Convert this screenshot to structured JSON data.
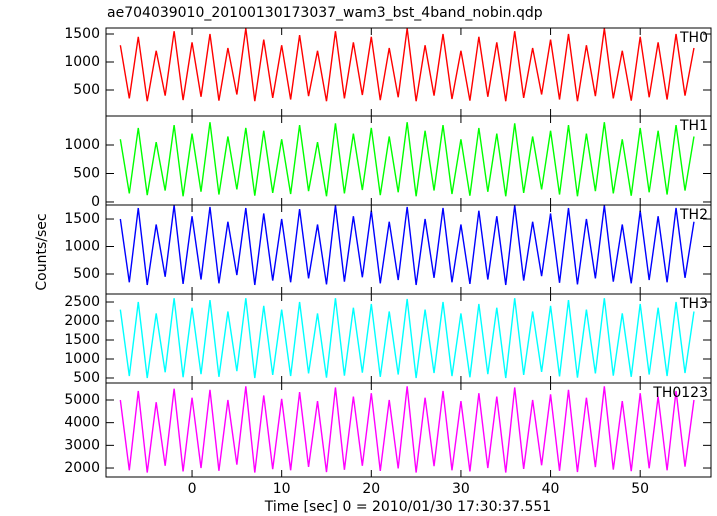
{
  "chart_data": {
    "type": "line",
    "title": "ae704039010_20100130173037_wam3_bst_4band_nobin.qdp",
    "xlabel": "Time [sec] 0 = 2010/01/30 17:30:37.551",
    "ylabel": "Counts/sec",
    "xlim": [
      -9.6,
      57.9
    ],
    "xticks": [
      0,
      10,
      20,
      30,
      40,
      50
    ],
    "x": [
      -8,
      -7,
      -6,
      -5,
      -4,
      -3,
      -2,
      -1,
      0,
      1,
      2,
      3,
      4,
      5,
      6,
      7,
      8,
      9,
      10,
      11,
      12,
      13,
      14,
      15,
      16,
      17,
      18,
      19,
      20,
      21,
      22,
      23,
      24,
      25,
      26,
      27,
      28,
      29,
      30,
      31,
      32,
      33,
      34,
      35,
      36,
      37,
      38,
      39,
      40,
      41,
      42,
      43,
      44,
      45,
      46,
      47,
      48,
      49,
      50,
      51,
      52,
      53,
      54,
      55,
      56
    ],
    "series": [
      {
        "name": "TH0",
        "color": "#ff0000",
        "ylim": [
          36,
          1607
        ],
        "yticks": [
          500,
          1000,
          1500
        ],
        "values": [
          1300,
          350,
          1450,
          300,
          1200,
          400,
          1550,
          320,
          1350,
          380,
          1500,
          310,
          1250,
          420,
          1600,
          300,
          1400,
          360,
          1300,
          330,
          1480,
          390,
          1200,
          300,
          1550,
          350,
          1350,
          410,
          1450,
          320,
          1250,
          370,
          1600,
          300,
          1300,
          400,
          1500,
          340,
          1200,
          310,
          1450,
          380,
          1350,
          300,
          1550,
          360,
          1250,
          420,
          1400,
          330,
          1500,
          300,
          1300,
          390,
          1600,
          350,
          1200,
          310,
          1450,
          370,
          1350,
          330,
          1500,
          400,
          1250
        ]
      },
      {
        "name": "TH1",
        "color": "#00ff00",
        "ylim": [
          -53,
          1509
        ],
        "yticks": [
          0,
          500,
          1000
        ],
        "values": [
          1100,
          150,
          1300,
          120,
          1050,
          200,
          1350,
          100,
          1200,
          180,
          1400,
          130,
          1150,
          220,
          1300,
          110,
          1250,
          160,
          1100,
          140,
          1350,
          190,
          1050,
          100,
          1380,
          150,
          1200,
          210,
          1300,
          120,
          1150,
          170,
          1400,
          100,
          1250,
          200,
          1350,
          140,
          1100,
          110,
          1300,
          180,
          1200,
          100,
          1380,
          160,
          1150,
          220,
          1250,
          130,
          1350,
          100,
          1200,
          190,
          1400,
          150,
          1100,
          110,
          1300,
          170,
          1250,
          130,
          1350,
          200,
          1150
        ]
      },
      {
        "name": "TH2",
        "color": "#0000ff",
        "ylim": [
          136,
          1755
        ],
        "yticks": [
          500,
          1000,
          1500
        ],
        "values": [
          1500,
          350,
          1700,
          300,
          1400,
          450,
          1750,
          320,
          1550,
          400,
          1720,
          330,
          1450,
          480,
          1700,
          300,
          1600,
          380,
          1500,
          350,
          1680,
          420,
          1400,
          310,
          1750,
          360,
          1550,
          440,
          1650,
          330,
          1450,
          390,
          1720,
          300,
          1500,
          430,
          1700,
          350,
          1400,
          320,
          1650,
          400,
          1550,
          300,
          1750,
          380,
          1450,
          460,
          1600,
          340,
          1700,
          310,
          1500,
          420,
          1750,
          360,
          1400,
          330,
          1650,
          390,
          1550,
          350,
          1700,
          430,
          1450
        ]
      },
      {
        "name": "TH3",
        "color": "#00ffff",
        "ylim": [
          368,
          2711
        ],
        "yticks": [
          500,
          1000,
          1500,
          2000,
          2500
        ],
        "values": [
          2300,
          550,
          2500,
          500,
          2200,
          650,
          2600,
          520,
          2350,
          600,
          2550,
          530,
          2250,
          680,
          2600,
          500,
          2400,
          580,
          2300,
          550,
          2500,
          620,
          2200,
          510,
          2600,
          560,
          2350,
          640,
          2450,
          530,
          2250,
          590,
          2580,
          500,
          2300,
          630,
          2500,
          550,
          2200,
          520,
          2450,
          600,
          2350,
          500,
          2600,
          580,
          2250,
          660,
          2400,
          540,
          2550,
          510,
          2300,
          620,
          2600,
          560,
          2200,
          530,
          2450,
          590,
          2350,
          550,
          2500,
          630,
          2250
        ]
      },
      {
        "name": "TH0123",
        "color": "#ff00ff",
        "ylim": [
          1604,
          5749
        ],
        "yticks": [
          2000,
          3000,
          4000,
          5000
        ],
        "values": [
          5000,
          1900,
          5400,
          1800,
          4900,
          2100,
          5500,
          1850,
          5100,
          2000,
          5450,
          1880,
          5000,
          2150,
          5600,
          1800,
          5200,
          1950,
          5050,
          1900,
          5350,
          2050,
          4950,
          1820,
          5550,
          1920,
          5150,
          2100,
          5300,
          1870,
          5000,
          1980,
          5600,
          1800,
          5100,
          2080,
          5400,
          1900,
          4950,
          1850,
          5300,
          2000,
          5150,
          1800,
          5550,
          1960,
          5000,
          2120,
          5250,
          1880,
          5450,
          1820,
          5100,
          2040,
          5600,
          1930,
          4950,
          1860,
          5300,
          1990,
          5150,
          1900,
          5400,
          2060,
          5000
        ]
      }
    ]
  }
}
